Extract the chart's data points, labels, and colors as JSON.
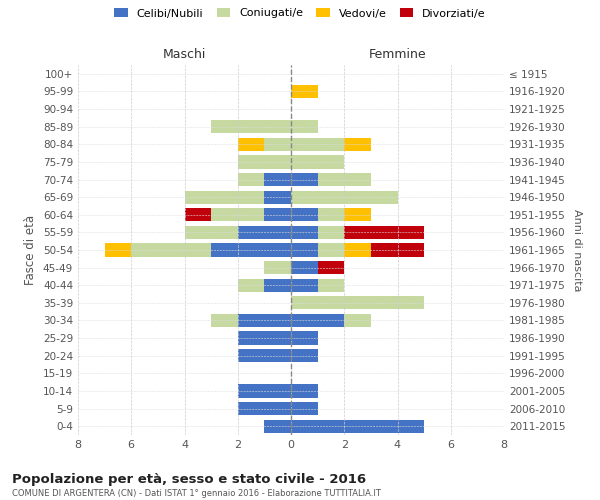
{
  "age_groups": [
    "100+",
    "95-99",
    "90-94",
    "85-89",
    "80-84",
    "75-79",
    "70-74",
    "65-69",
    "60-64",
    "55-59",
    "50-54",
    "45-49",
    "40-44",
    "35-39",
    "30-34",
    "25-29",
    "20-24",
    "15-19",
    "10-14",
    "5-9",
    "0-4"
  ],
  "birth_years": [
    "≤ 1915",
    "1916-1920",
    "1921-1925",
    "1926-1930",
    "1931-1935",
    "1936-1940",
    "1941-1945",
    "1946-1950",
    "1951-1955",
    "1956-1960",
    "1961-1965",
    "1966-1970",
    "1971-1975",
    "1976-1980",
    "1981-1985",
    "1986-1990",
    "1991-1995",
    "1996-2000",
    "2001-2005",
    "2006-2010",
    "2011-2015"
  ],
  "maschi": {
    "celibi": [
      0,
      0,
      0,
      0,
      0,
      0,
      1,
      1,
      1,
      2,
      3,
      0,
      1,
      0,
      2,
      2,
      2,
      0,
      2,
      2,
      1
    ],
    "coniugati": [
      0,
      0,
      0,
      3,
      1,
      2,
      1,
      3,
      2,
      2,
      3,
      1,
      1,
      0,
      1,
      0,
      0,
      0,
      0,
      0,
      0
    ],
    "vedovi": [
      0,
      0,
      0,
      0,
      1,
      0,
      0,
      0,
      0,
      0,
      1,
      0,
      0,
      0,
      0,
      0,
      0,
      0,
      0,
      0,
      0
    ],
    "divorziati": [
      0,
      0,
      0,
      0,
      0,
      0,
      0,
      0,
      1,
      0,
      0,
      0,
      0,
      0,
      0,
      0,
      0,
      0,
      0,
      0,
      0
    ]
  },
  "femmine": {
    "nubili": [
      0,
      0,
      0,
      0,
      0,
      0,
      1,
      0,
      1,
      1,
      1,
      1,
      1,
      0,
      2,
      1,
      1,
      0,
      1,
      1,
      5
    ],
    "coniugate": [
      0,
      0,
      0,
      1,
      2,
      2,
      2,
      4,
      1,
      1,
      1,
      0,
      1,
      5,
      1,
      0,
      0,
      0,
      0,
      0,
      0
    ],
    "vedove": [
      0,
      1,
      0,
      0,
      1,
      0,
      0,
      0,
      1,
      0,
      1,
      0,
      0,
      0,
      0,
      0,
      0,
      0,
      0,
      0,
      0
    ],
    "divorziate": [
      0,
      0,
      0,
      0,
      0,
      0,
      0,
      0,
      0,
      3,
      2,
      1,
      0,
      0,
      0,
      0,
      0,
      0,
      0,
      0,
      0
    ]
  },
  "colors": {
    "celibi_nubili": "#4472c4",
    "coniugati": "#c5d9a0",
    "vedovi": "#ffc000",
    "divorziati": "#c0000b"
  },
  "title": "Popolazione per età, sesso e stato civile - 2016",
  "subtitle": "COMUNE DI ARGENTERA (CN) - Dati ISTAT 1° gennaio 2016 - Elaborazione TUTTITALIA.IT",
  "xlabel_left": "Maschi",
  "xlabel_right": "Femmine",
  "ylabel_left": "Fasce di età",
  "ylabel_right": "Anni di nascita",
  "xlim": 8,
  "legend_labels": [
    "Celibi/Nubili",
    "Coniugati/e",
    "Vedovi/e",
    "Divorziati/e"
  ]
}
